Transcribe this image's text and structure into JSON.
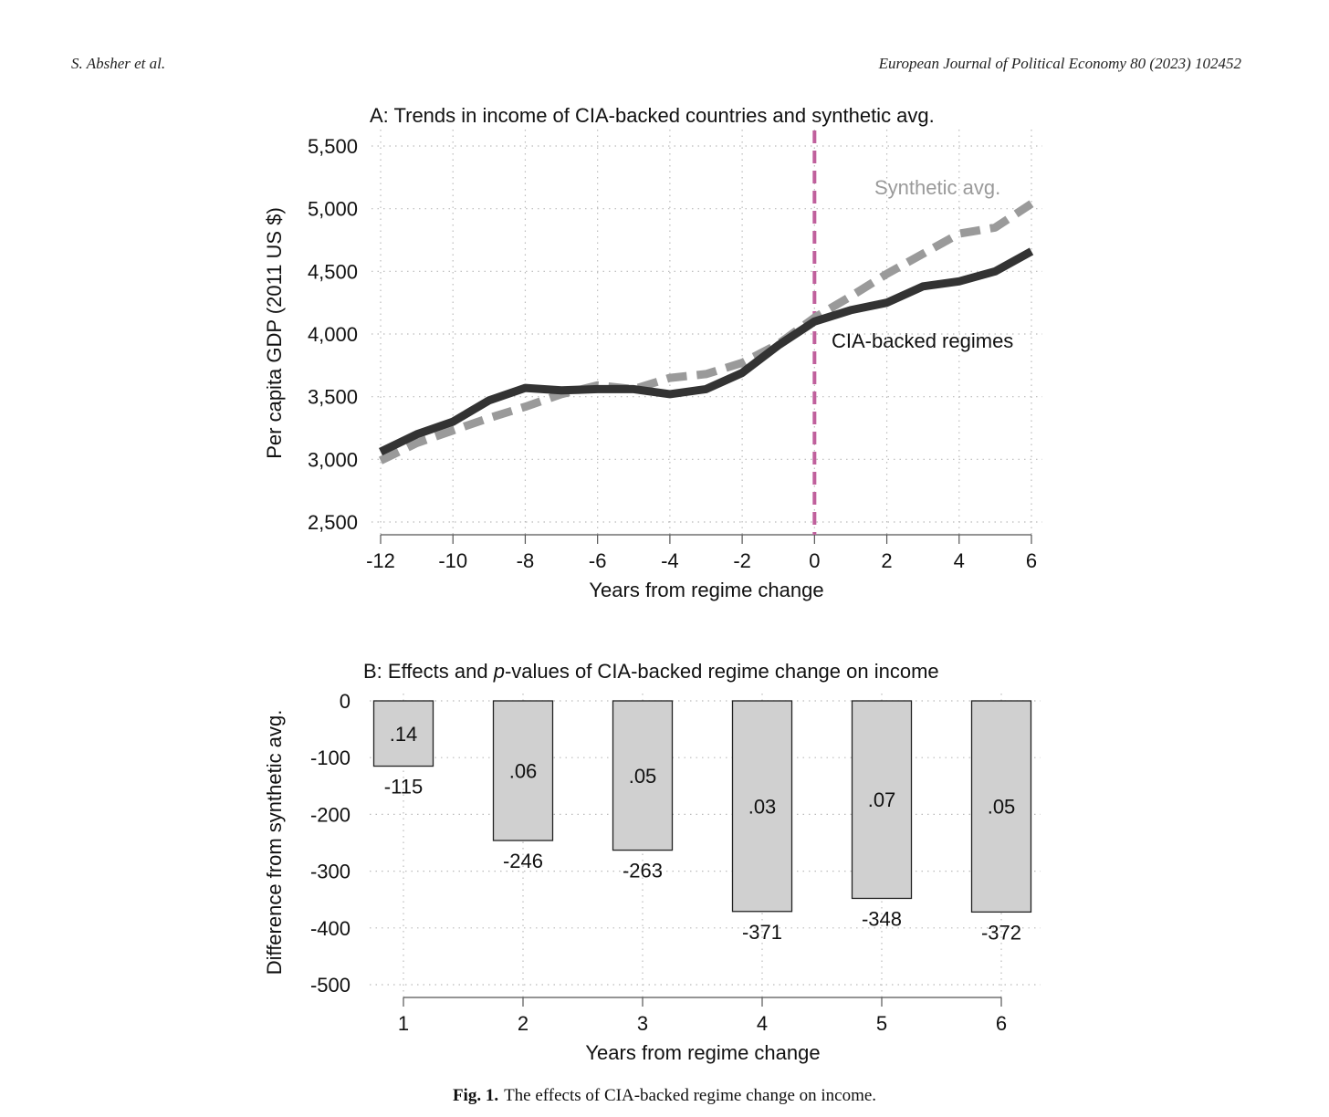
{
  "header": {
    "authors": "S. Absher et al.",
    "journal": "European Journal of Political Economy 80 (2023) 102452"
  },
  "caption": {
    "label": "Fig. 1.",
    "text": "The effects of CIA-backed regime change on income."
  },
  "chart_data": [
    {
      "type": "line",
      "title": "A: Trends in income of CIA-backed countries and synthetic avg.",
      "xlabel": "Years from regime change",
      "ylabel": "Per capita GDP (2011 US $)",
      "xlim": [
        -12,
        6
      ],
      "ylim": [
        2500,
        5500
      ],
      "xticks": [
        -12,
        -10,
        -8,
        -6,
        -4,
        -2,
        0,
        2,
        4,
        6
      ],
      "xtick_labels": [
        "-12",
        "-10",
        "-8",
        "-6",
        "-4",
        "-2",
        "0",
        "2",
        "4",
        "6"
      ],
      "yticks": [
        2500,
        3000,
        3500,
        4000,
        4500,
        5000,
        5500
      ],
      "ytick_labels": [
        "2,500",
        "3,000",
        "3,500",
        "4,000",
        "4,500",
        "5,000",
        "5,500"
      ],
      "grid": true,
      "vline": {
        "x": 0,
        "color": "#c0609c"
      },
      "x": [
        -12,
        -11,
        -10,
        -9,
        -8,
        -7,
        -6,
        -5,
        -4,
        -3,
        -2,
        -1,
        0,
        1,
        2,
        3,
        4,
        5,
        6
      ],
      "series": [
        {
          "name": "CIA-backed regimes",
          "label": "CIA-backed regimes",
          "color": "#333333",
          "style": "solid",
          "values": [
            3060,
            3200,
            3300,
            3470,
            3570,
            3550,
            3560,
            3560,
            3520,
            3560,
            3690,
            3910,
            4100,
            4190,
            4250,
            4380,
            4420,
            4500,
            4660
          ]
        },
        {
          "name": "Synthetic avg.",
          "label": "Synthetic avg.",
          "color": "#9a9a9a",
          "style": "dashed",
          "values": [
            2990,
            3130,
            3230,
            3330,
            3420,
            3520,
            3590,
            3560,
            3650,
            3680,
            3770,
            3920,
            4130,
            4300,
            4480,
            4640,
            4800,
            4850,
            5040
          ]
        }
      ]
    },
    {
      "type": "bar",
      "title_prefix": "B: Effects and ",
      "title_italic": "p",
      "title_suffix": "-values of CIA-backed regime change on income",
      "xlabel": "Years from regime change",
      "ylabel": "Difference from synthetic avg.",
      "categories": [
        "1",
        "2",
        "3",
        "4",
        "5",
        "6"
      ],
      "values": [
        -115,
        -246,
        -263,
        -371,
        -348,
        -372
      ],
      "value_labels": [
        "-115",
        "-246",
        "-263",
        "-371",
        "-348",
        "-372"
      ],
      "p_values": [
        ".14",
        ".06",
        ".05",
        ".03",
        ".07",
        ".05"
      ],
      "ylim": [
        -500,
        0
      ],
      "yticks": [
        0,
        -100,
        -200,
        -300,
        -400,
        -500
      ],
      "ytick_labels": [
        "0",
        "-100",
        "-200",
        "-300",
        "-400",
        "-500"
      ],
      "grid": true,
      "bar_color": "#d0d0d0"
    }
  ]
}
